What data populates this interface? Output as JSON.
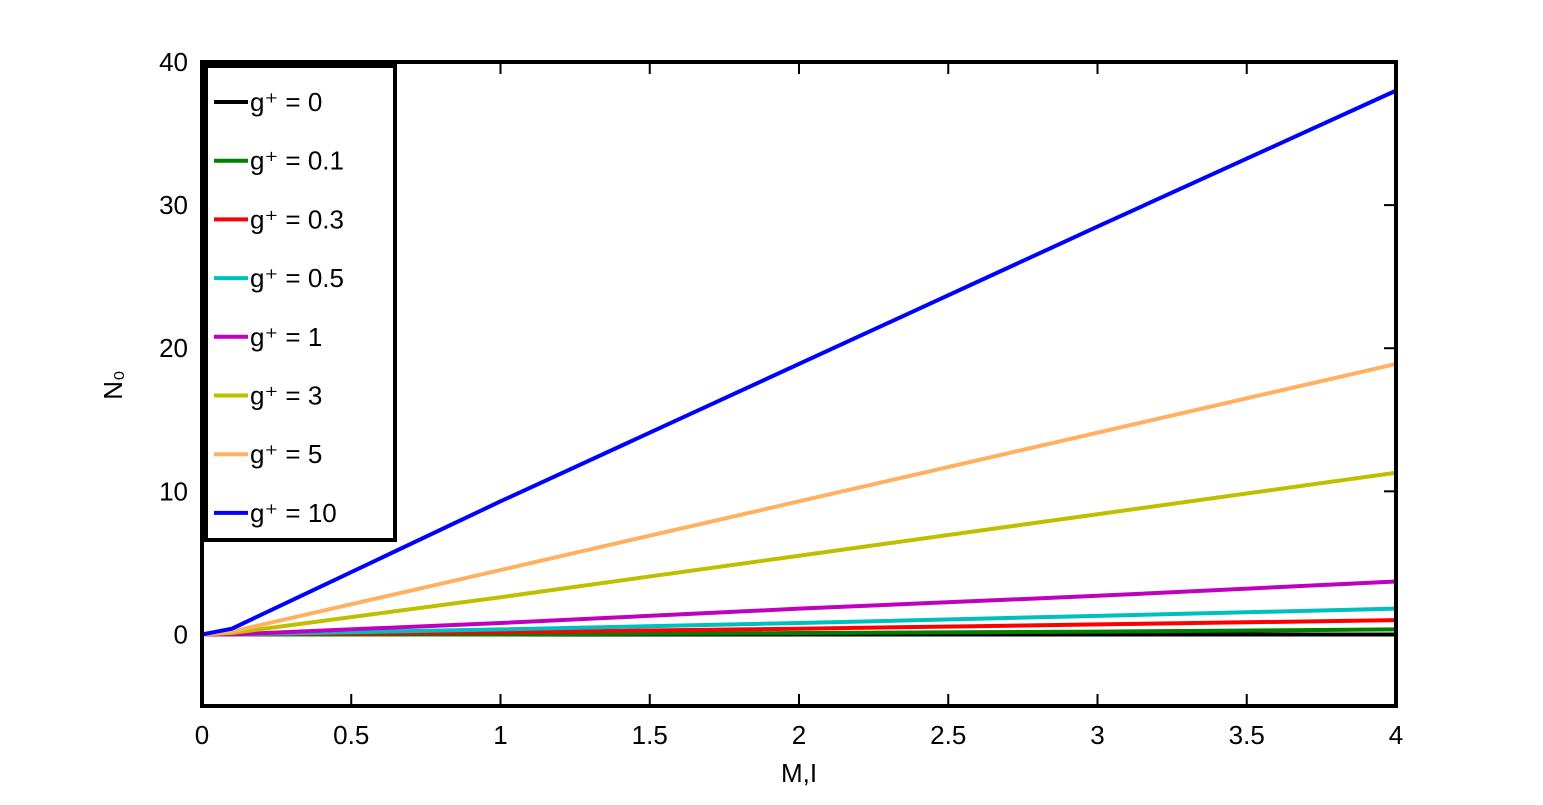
{
  "chart_data": {
    "type": "line",
    "x_label": "M,I",
    "y_label": "N₀",
    "x": [
      0,
      0.1,
      1,
      2,
      3,
      4
    ],
    "xlim": [
      0,
      4
    ],
    "xticks": [
      0,
      0.5,
      1,
      1.5,
      2,
      2.5,
      3,
      3.5,
      4
    ],
    "ylim": [
      -5,
      40
    ],
    "yticks": [
      0,
      10,
      20,
      30,
      40
    ],
    "legend": "upper-left",
    "series": [
      {
        "name": "g⁺ = 0",
        "color": "#000000",
        "values": [
          0,
          0,
          0,
          0,
          0,
          0
        ]
      },
      {
        "name": "g⁺ = 0.1",
        "color": "#008000",
        "values": [
          0,
          0,
          0,
          0.1,
          0.2,
          0.35
        ]
      },
      {
        "name": "g⁺ = 0.3",
        "color": "#ff0000",
        "values": [
          0,
          0,
          0.15,
          0.4,
          0.7,
          1.0
        ]
      },
      {
        "name": "g⁺ = 0.5",
        "color": "#00bfbf",
        "values": [
          0,
          0,
          0.35,
          0.8,
          1.3,
          1.8
        ]
      },
      {
        "name": "g⁺ = 1",
        "color": "#bf00bf",
        "values": [
          0,
          0,
          0.8,
          1.8,
          2.7,
          3.7
        ]
      },
      {
        "name": "g⁺ = 3",
        "color": "#bfbf00",
        "values": [
          0,
          0.1,
          2.6,
          5.5,
          8.4,
          11.3
        ]
      },
      {
        "name": "g⁺ = 5",
        "color": "#ffb060",
        "values": [
          0,
          0.2,
          4.5,
          9.3,
          14.1,
          18.9
        ]
      },
      {
        "name": "g⁺ = 10",
        "color": "#0000ff",
        "values": [
          0,
          0.4,
          9.3,
          18.9,
          28.5,
          38
        ]
      }
    ]
  }
}
